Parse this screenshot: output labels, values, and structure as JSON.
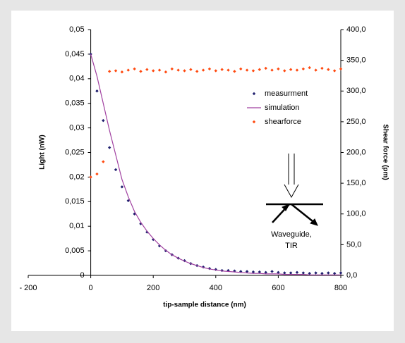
{
  "chart_data": {
    "type": "line",
    "xlabel": "tip-sample distance (nm)",
    "ylabel": "Light (nW)",
    "y2label": "Shear force (pm)",
    "annotations": [
      "Waveguide,",
      "TIR"
    ],
    "x": [
      0,
      20,
      40,
      60,
      80,
      100,
      120,
      140,
      160,
      180,
      200,
      220,
      240,
      260,
      280,
      300,
      320,
      340,
      360,
      380,
      400,
      420,
      440,
      460,
      480,
      500,
      520,
      540,
      560,
      580,
      600,
      620,
      640,
      660,
      680,
      700,
      720,
      740,
      760,
      780,
      800
    ],
    "series": [
      {
        "name": "measurment",
        "color": "#1f1f6e",
        "style": "marker",
        "values": [
          0.045,
          0.0375,
          0.0315,
          0.026,
          0.0215,
          0.018,
          0.0152,
          0.0125,
          0.0105,
          0.0088,
          0.0073,
          0.006,
          0.005,
          0.0042,
          0.0035,
          0.003,
          0.0024,
          0.002,
          0.0017,
          0.0014,
          0.0012,
          0.001,
          0.001,
          0.0009,
          0.0008,
          0.0008,
          0.0007,
          0.0007,
          0.0006,
          0.0008,
          0.0006,
          0.0005,
          0.0005,
          0.0006,
          0.0005,
          0.0004,
          0.0005,
          0.0004,
          0.0005,
          0.0004,
          0.0005
        ]
      },
      {
        "name": "simulation",
        "color": "#a040a0",
        "style": "line",
        "values": [
          0.045,
          0.0405,
          0.035,
          0.0295,
          0.0245,
          0.0195,
          0.016,
          0.013,
          0.0108,
          0.009,
          0.0075,
          0.0062,
          0.0051,
          0.0042,
          0.0035,
          0.0029,
          0.0024,
          0.002,
          0.0016,
          0.0013,
          0.0011,
          0.0009,
          0.0008,
          0.0007,
          0.0006,
          0.0005,
          0.0004,
          0.0004,
          0.0003,
          0.0003,
          0.0003,
          0.0002,
          0.0002,
          0.0002,
          0.0002,
          0.0001,
          0.0001,
          0.0001,
          0.0001,
          0.0001,
          0.0001
        ]
      },
      {
        "name": "shearforce",
        "color": "#ff4a10",
        "style": "marker",
        "axis": "y2",
        "values": [
          160,
          165,
          185,
          332,
          333,
          331,
          334,
          336,
          332,
          335,
          333,
          334,
          331,
          336,
          334,
          333,
          335,
          332,
          334,
          336,
          333,
          335,
          334,
          332,
          336,
          334,
          333,
          335,
          337,
          334,
          336,
          333,
          335,
          334,
          336,
          338,
          334,
          337,
          335,
          333,
          336
        ]
      }
    ],
    "xlim": [
      -200,
      800
    ],
    "xticks": [
      {
        "value": -200,
        "label": "- 200"
      },
      0,
      200,
      400,
      600,
      800
    ],
    "ylim": [
      0,
      0.05
    ],
    "yticks": [
      0,
      {
        "value": 0.005,
        "label": "0,005"
      },
      {
        "value": 0.01,
        "label": "0,01"
      },
      {
        "value": 0.015,
        "label": "0,015"
      },
      {
        "value": 0.02,
        "label": "0,02"
      },
      {
        "value": 0.025,
        "label": "0,025"
      },
      {
        "value": 0.03,
        "label": "0,03"
      },
      {
        "value": 0.035,
        "label": "0,035"
      },
      {
        "value": 0.04,
        "label": "0,04"
      },
      {
        "value": 0.045,
        "label": "0,045"
      },
      {
        "value": 0.05,
        "label": "0,05"
      }
    ],
    "y2lim": [
      0,
      400
    ],
    "y2ticks": [
      {
        "value": 0,
        "label": "0,0"
      },
      {
        "value": 50,
        "label": "50,0"
      },
      {
        "value": 100,
        "label": "100,0"
      },
      {
        "value": 150,
        "label": "150,0"
      },
      {
        "value": 200,
        "label": "200,0"
      },
      {
        "value": 250,
        "label": "250,0"
      },
      {
        "value": 300,
        "label": "300,0"
      },
      {
        "value": 350,
        "label": "350,0"
      },
      {
        "value": 400,
        "label": "400,0"
      }
    ],
    "legend": "upper right",
    "grid": false
  }
}
